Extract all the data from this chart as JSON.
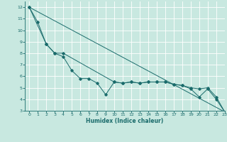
{
  "xlabel": "Humidex (Indice chaleur)",
  "xlim": [
    -0.5,
    23
  ],
  "ylim": [
    3,
    12.5
  ],
  "xticks": [
    0,
    1,
    2,
    3,
    4,
    5,
    6,
    7,
    8,
    9,
    10,
    11,
    12,
    13,
    14,
    15,
    16,
    17,
    18,
    19,
    20,
    21,
    22,
    23
  ],
  "yticks": [
    3,
    4,
    5,
    6,
    7,
    8,
    9,
    10,
    11,
    12
  ],
  "bg_color": "#c8e8e0",
  "line_color": "#1a6b6b",
  "grid_color": "#ffffff",
  "series1_x": [
    0,
    1,
    2,
    3,
    4,
    5,
    6,
    7,
    8,
    9,
    10,
    11,
    12,
    13,
    14,
    15,
    16,
    17,
    18,
    19,
    20,
    21,
    22,
    23
  ],
  "series1_y": [
    12.0,
    10.7,
    8.8,
    8.0,
    7.7,
    6.5,
    5.8,
    5.8,
    5.4,
    4.4,
    5.5,
    5.4,
    5.5,
    5.4,
    5.5,
    5.5,
    5.5,
    5.3,
    5.2,
    4.9,
    4.2,
    4.9,
    4.0,
    2.9
  ],
  "series2_x": [
    0,
    2,
    3,
    4,
    10,
    11,
    12,
    13,
    14,
    15,
    16,
    17,
    18,
    19,
    20,
    21,
    22,
    23
  ],
  "series2_y": [
    12.0,
    8.8,
    8.0,
    8.0,
    5.5,
    5.4,
    5.5,
    5.4,
    5.5,
    5.5,
    5.5,
    5.3,
    5.2,
    5.0,
    4.9,
    5.0,
    4.2,
    2.9
  ],
  "series3_x": [
    0,
    23
  ],
  "series3_y": [
    12.0,
    2.9
  ]
}
